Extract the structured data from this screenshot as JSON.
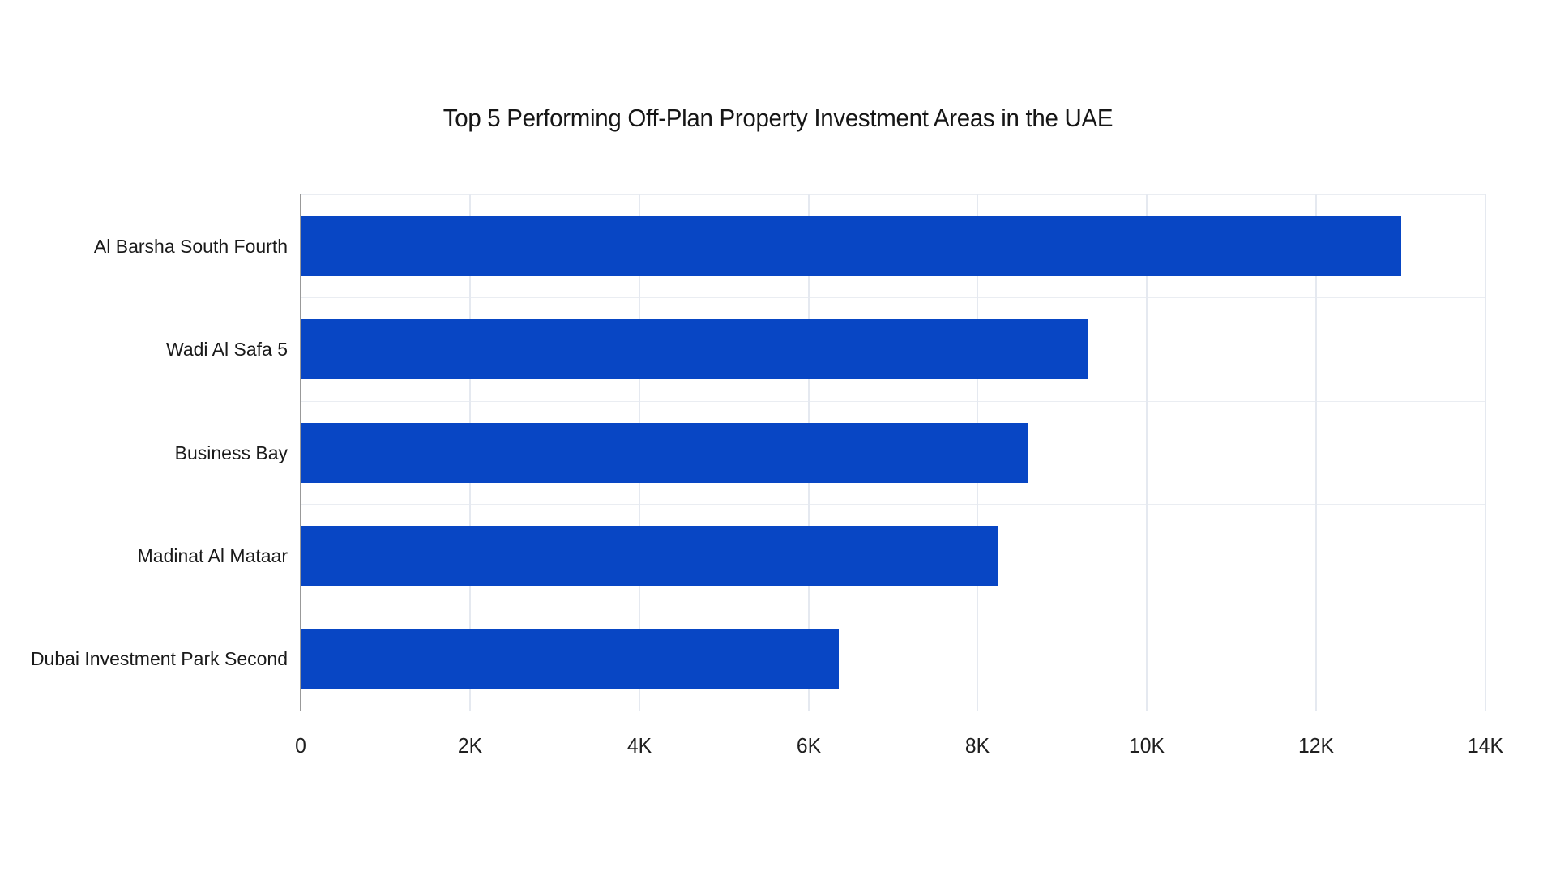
{
  "page": {
    "background": "#ffffff"
  },
  "chart_data": {
    "type": "bar",
    "orientation": "horizontal",
    "title": "Top 5 Performing Off-Plan Property Investment Areas in the UAE",
    "categories": [
      "Al Barsha South Fourth",
      "Wadi Al Safa 5",
      "Business Bay",
      "Madinat Al Mataar",
      "Dubai Investment Park Second"
    ],
    "values": [
      13000,
      9310,
      8590,
      8240,
      6360
    ],
    "xlabel": "",
    "ylabel": "",
    "xlim": [
      0,
      14000
    ],
    "x_ticks": [
      {
        "label": "0",
        "value": 0
      },
      {
        "label": "2K",
        "value": 2000
      },
      {
        "label": "4K",
        "value": 4000
      },
      {
        "label": "6K",
        "value": 6000
      },
      {
        "label": "8K",
        "value": 8000
      },
      {
        "label": "10K",
        "value": 10000
      },
      {
        "label": "12K",
        "value": 12000
      },
      {
        "label": "14K",
        "value": 14000
      }
    ],
    "grid": true,
    "legend": false,
    "bar_color": "#0846C4",
    "gridline_color": "#e5e9f0",
    "row_line_color": "#eaedf2",
    "axis_line_color": "#999999",
    "text_color": "#1a1a1a"
  }
}
